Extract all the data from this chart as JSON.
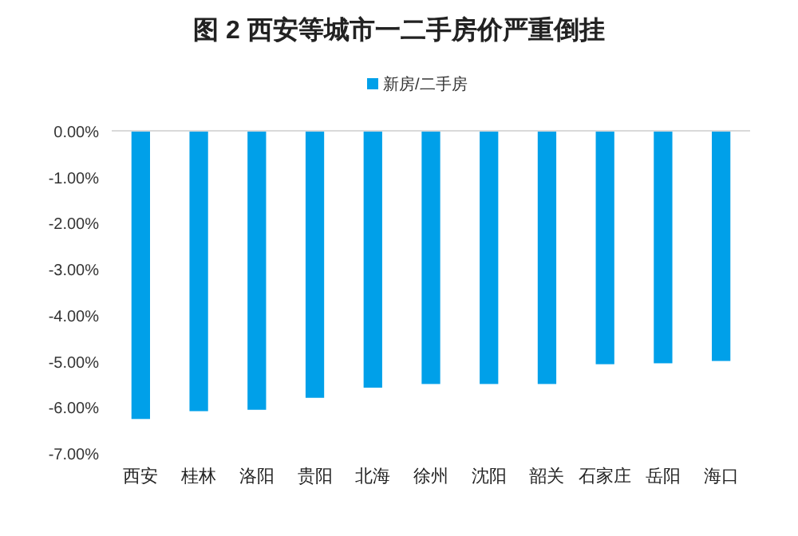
{
  "chart_data": {
    "type": "bar",
    "title": "图 2  西安等城市一二手房价严重倒挂",
    "categories": [
      "西安",
      "桂林",
      "洛阳",
      "贵阳",
      "北海",
      "徐州",
      "沈阳",
      "韶关",
      "石家庄",
      "岳阳",
      "海口"
    ],
    "series": [
      {
        "name": "新房/二手房",
        "color": "#00a0e9",
        "values": [
          -6.26,
          -6.09,
          -6.06,
          -5.8,
          -5.58,
          -5.5,
          -5.5,
          -5.5,
          -5.07,
          -5.05,
          -5.0
        ]
      }
    ],
    "ylim": [
      -7,
      0
    ],
    "yticks": [
      {
        "value": 0,
        "label": "0.00%"
      },
      {
        "value": -1,
        "label": "-1.00%"
      },
      {
        "value": -2,
        "label": "-2.00%"
      },
      {
        "value": -3,
        "label": "-3.00%"
      },
      {
        "value": -4,
        "label": "-4.00%"
      },
      {
        "value": -5,
        "label": "-5.00%"
      },
      {
        "value": -6,
        "label": "-6.00%"
      },
      {
        "value": -7,
        "label": "-7.00%"
      }
    ],
    "legend": "top",
    "grid": false
  }
}
